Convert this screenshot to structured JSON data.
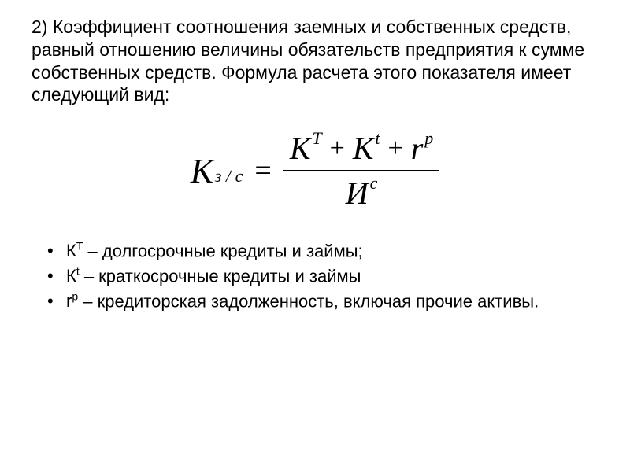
{
  "item_number": "2)",
  "paragraph": "Коэффициент соотношения заемных и собственных средств, равный отношению величины обязательств предприятия к сумме собственных средств. Формула расчета этого показателя имеет следующий вид:",
  "formula": {
    "lhs_base": "К",
    "lhs_sub": "з / с",
    "equals": "=",
    "numerator": {
      "term1_base": "К",
      "term1_sup": "Т",
      "term2_base": "К",
      "term2_sup": "t",
      "term3_base": "r",
      "term3_sup": "p",
      "plus": "+"
    },
    "denominator": {
      "base": "И",
      "sup": "с"
    }
  },
  "definitions": [
    {
      "symbol_base": "К",
      "symbol_sup": "Т",
      "text": " – долгосрочные кредиты и займы;"
    },
    {
      "symbol_base": "К",
      "symbol_sup": "t",
      "text": " – краткосрочные кредиты и займы"
    },
    {
      "symbol_base": "r",
      "symbol_sup": "p",
      "text": " – кредиторская задолженность, включая прочие активы."
    }
  ],
  "colors": {
    "background": "#ffffff",
    "text": "#000000",
    "line": "#000000"
  },
  "typography": {
    "body_font": "Arial",
    "formula_font": "Times New Roman",
    "paragraph_size": 23,
    "formula_base_size": 44,
    "formula_sup_size": 22,
    "definition_size": 22
  }
}
